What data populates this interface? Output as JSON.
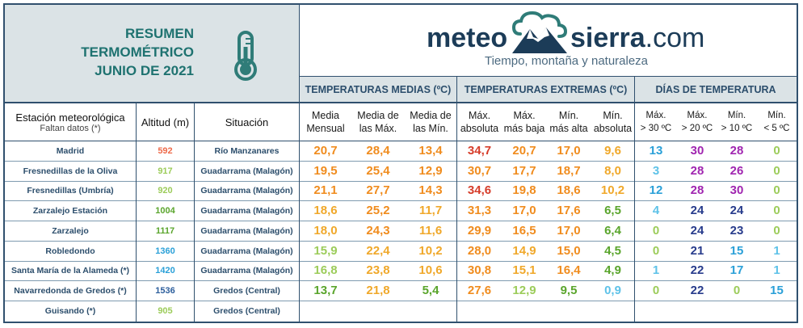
{
  "header": {
    "title_lines": [
      "RESUMEN",
      "TERMOMÉTRICO",
      "JUNIO DE 2021"
    ],
    "logo_left": "meteo",
    "logo_right": "sierra",
    "logo_suffix": ".com",
    "tagline": "Tiempo, montaña y naturaleza",
    "icons": [
      "thermometer-icon",
      "mountain-cloud-logo-icon"
    ]
  },
  "groups": {
    "medias": "TEMPERATURAS MEDIAS (ºC)",
    "extremas": "TEMPERATURAS EXTREMAS (ºC)",
    "dias": "DÍAS DE TEMPERATURA"
  },
  "columns": {
    "station": "Estación meteorológica",
    "station_note": "Faltan datos (*)",
    "altitude": "Altitud (m)",
    "situation": "Situación",
    "media_mensual": [
      "Media",
      "Mensual"
    ],
    "media_max": [
      "Media de",
      "las Máx."
    ],
    "media_min": [
      "Media de",
      "las Mín."
    ],
    "max_abs": [
      "Máx.",
      "absoluta"
    ],
    "max_baja": [
      "Máx.",
      "más baja"
    ],
    "min_alta": [
      "Mín.",
      "más alta"
    ],
    "min_abs": [
      "Mín.",
      "absoluta"
    ],
    "dias_30": [
      "Máx.",
      "> 30 ºC"
    ],
    "dias_20": [
      "Máx.",
      "> 20 ºC"
    ],
    "dias_10": [
      "Mín.",
      "> 10 ºC"
    ],
    "dias_5": [
      "Mín.",
      "< 5 ºC"
    ]
  },
  "colors": {
    "border": "#30506e",
    "header_bg": "#dbe3e6",
    "title_teal": "#1e7270",
    "text_navy": "#2c4e6c",
    "orange": "#f08c1e",
    "amber": "#f0a82a",
    "red": "#d63d2a",
    "green": "#5aa52c",
    "light_green": "#9ccc5a",
    "sky_blue": "#5ec2e8",
    "cyan": "#2aa0d8",
    "purple": "#a025b0",
    "navy": "#283c8c"
  },
  "rows": [
    {
      "station": "Madrid",
      "alt": "592",
      "sit": "Río Manzanares",
      "vals": [
        "20,7",
        "28,4",
        "13,4",
        "34,7",
        "20,7",
        "17,0",
        "9,6",
        "13",
        "30",
        "28",
        "0"
      ],
      "alt_color": "#ee6a4a",
      "colors": [
        "#f08c1e",
        "#f08c1e",
        "#f08c1e",
        "#d63d2a",
        "#f08c1e",
        "#f08c1e",
        "#f0a82a",
        "#2aa0d8",
        "#a025b0",
        "#a025b0",
        "#9ccc5a"
      ]
    },
    {
      "station": "Fresnedillas de la Oliva",
      "alt": "917",
      "sit": "Guadarrama (Malagón)",
      "vals": [
        "19,5",
        "25,4",
        "12,9",
        "30,7",
        "17,7",
        "18,7",
        "8,0",
        "3",
        "28",
        "26",
        "0"
      ],
      "alt_color": "#9ccc5a",
      "colors": [
        "#f08c1e",
        "#f08c1e",
        "#f08c1e",
        "#f08c1e",
        "#f08c1e",
        "#f08c1e",
        "#f0a82a",
        "#5ec2e8",
        "#a025b0",
        "#a025b0",
        "#9ccc5a"
      ]
    },
    {
      "station": "Fresnedillas (Umbría)",
      "alt": "920",
      "sit": "Guadarrama (Malagón)",
      "vals": [
        "21,1",
        "27,7",
        "14,3",
        "34,6",
        "19,8",
        "18,6",
        "10,2",
        "12",
        "28",
        "30",
        "0"
      ],
      "alt_color": "#9ccc5a",
      "colors": [
        "#f08c1e",
        "#f08c1e",
        "#f08c1e",
        "#d63d2a",
        "#f08c1e",
        "#f08c1e",
        "#f0a82a",
        "#2aa0d8",
        "#a025b0",
        "#a025b0",
        "#9ccc5a"
      ]
    },
    {
      "station": "Zarzalejo Estación",
      "alt": "1004",
      "sit": "Guadarrama (Malagón)",
      "vals": [
        "18,6",
        "25,2",
        "11,7",
        "31,3",
        "17,0",
        "17,6",
        "6,5",
        "4",
        "24",
        "24",
        "0"
      ],
      "alt_color": "#5aa52c",
      "colors": [
        "#f0a82a",
        "#f08c1e",
        "#f0a82a",
        "#f08c1e",
        "#f08c1e",
        "#f08c1e",
        "#5aa52c",
        "#5ec2e8",
        "#283c8c",
        "#283c8c",
        "#9ccc5a"
      ]
    },
    {
      "station": "Zarzalejo",
      "alt": "1117",
      "sit": "Guadarrama (Malagón)",
      "vals": [
        "18,0",
        "24,3",
        "11,6",
        "29,9",
        "16,5",
        "17,0",
        "6,4",
        "0",
        "24",
        "23",
        "0"
      ],
      "alt_color": "#5aa52c",
      "colors": [
        "#f0a82a",
        "#f08c1e",
        "#f0a82a",
        "#f08c1e",
        "#f08c1e",
        "#f08c1e",
        "#5aa52c",
        "#9ccc5a",
        "#283c8c",
        "#283c8c",
        "#9ccc5a"
      ]
    },
    {
      "station": "Robledondo",
      "alt": "1360",
      "sit": "Guadarrama (Malagón)",
      "vals": [
        "15,9",
        "22,4",
        "10,2",
        "28,0",
        "14,9",
        "15,0",
        "4,5",
        "0",
        "21",
        "15",
        "1"
      ],
      "alt_color": "#2aa0d8",
      "colors": [
        "#9ccc5a",
        "#f0a82a",
        "#f0a82a",
        "#f08c1e",
        "#f0a82a",
        "#f08c1e",
        "#5aa52c",
        "#9ccc5a",
        "#283c8c",
        "#2aa0d8",
        "#5ec2e8"
      ]
    },
    {
      "station": "Santa María de la Alameda (*)",
      "alt": "1420",
      "sit": "Guadarrama (Malagón)",
      "vals": [
        "16,8",
        "23,8",
        "10,6",
        "30,8",
        "15,1",
        "16,4",
        "4,9",
        "1",
        "22",
        "17",
        "1"
      ],
      "alt_color": "#2aa0d8",
      "colors": [
        "#9ccc5a",
        "#f0a82a",
        "#f0a82a",
        "#f08c1e",
        "#f0a82a",
        "#f08c1e",
        "#5aa52c",
        "#5ec2e8",
        "#283c8c",
        "#2aa0d8",
        "#5ec2e8"
      ]
    },
    {
      "station": "Navarredonda de Gredos (*)",
      "alt": "1536",
      "sit": "Gredos (Central)",
      "vals": [
        "13,7",
        "21,8",
        "5,4",
        "27,6",
        "12,9",
        "9,5",
        "0,9",
        "0",
        "22",
        "0",
        "15"
      ],
      "alt_color": "#2c5e9c",
      "colors": [
        "#5aa52c",
        "#f0a82a",
        "#5aa52c",
        "#f08c1e",
        "#9ccc5a",
        "#5aa52c",
        "#5ec2e8",
        "#9ccc5a",
        "#283c8c",
        "#9ccc5a",
        "#2aa0d8"
      ]
    },
    {
      "station": "Guisando (*)",
      "alt": "905",
      "sit": "Gredos (Central)",
      "vals": [
        "",
        "",
        "",
        "",
        "",
        "",
        "",
        "",
        "",
        "",
        ""
      ],
      "alt_color": "#9ccc5a",
      "colors": [
        "#000",
        "#000",
        "#000",
        "#000",
        "#000",
        "#000",
        "#000",
        "#000",
        "#000",
        "#000",
        "#000"
      ]
    }
  ]
}
